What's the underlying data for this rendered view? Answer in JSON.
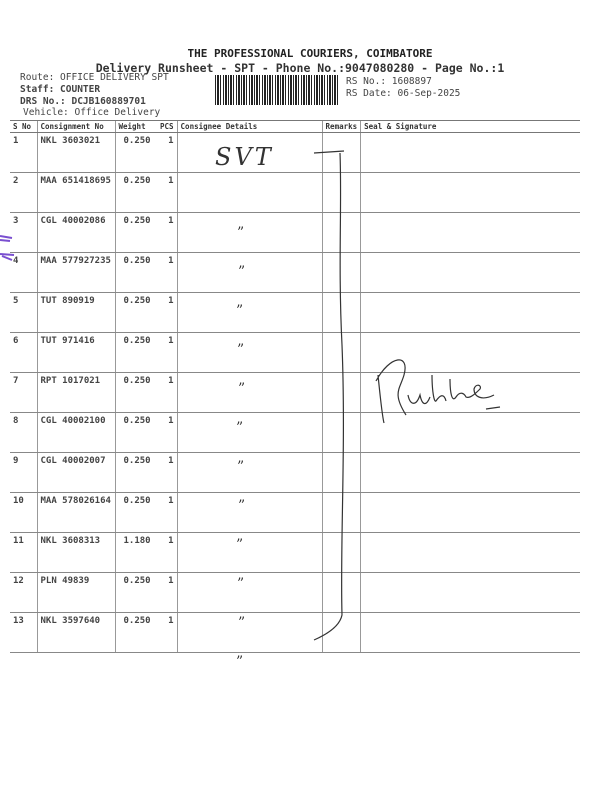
{
  "header": {
    "company": "THE PROFESSIONAL COURIERS, COIMBATORE",
    "subtitle": "Delivery Runsheet - SPT - Phone No.:9047080280 - Page No.:1",
    "route": "Route: OFFICE DELIVERY SPT",
    "staff": "Staff: COUNTER",
    "drs_no": "DRS No.: DCJB160889701",
    "vehicle": "Vehicle: Office Delivery",
    "rs_no": "RS No.: 1608897",
    "rs_date": "RS Date: 06-Sep-2025"
  },
  "table": {
    "columns": [
      "S No",
      "Consignment No",
      "Weight",
      "PCS",
      "Consignee Details",
      "Remarks",
      "Seal & Signature"
    ],
    "rows": [
      {
        "sno": "1",
        "consignment": "NKL 3603021",
        "weight": "0.250",
        "pcs": "1"
      },
      {
        "sno": "2",
        "consignment": "MAA 651418695",
        "weight": "0.250",
        "pcs": "1"
      },
      {
        "sno": "3",
        "consignment": "CGL 40002086",
        "weight": "0.250",
        "pcs": "1"
      },
      {
        "sno": "4",
        "consignment": "MAA 577927235",
        "weight": "0.250",
        "pcs": "1"
      },
      {
        "sno": "5",
        "consignment": "TUT 890919",
        "weight": "0.250",
        "pcs": "1"
      },
      {
        "sno": "6",
        "consignment": "TUT 971416",
        "weight": "0.250",
        "pcs": "1"
      },
      {
        "sno": "7",
        "consignment": "RPT 1017021",
        "weight": "0.250",
        "pcs": "1"
      },
      {
        "sno": "8",
        "consignment": "CGL 40002100",
        "weight": "0.250",
        "pcs": "1"
      },
      {
        "sno": "9",
        "consignment": "CGL 40002007",
        "weight": "0.250",
        "pcs": "1"
      },
      {
        "sno": "10",
        "consignment": "MAA 578026164",
        "weight": "0.250",
        "pcs": "1"
      },
      {
        "sno": "11",
        "consignment": "NKL 3608313",
        "weight": "1.180",
        "pcs": "1"
      },
      {
        "sno": "12",
        "consignment": "PLN 49839",
        "weight": "0.250",
        "pcs": "1"
      },
      {
        "sno": "13",
        "consignment": "NKL 3597640",
        "weight": "0.250",
        "pcs": "1"
      }
    ]
  },
  "handwriting": {
    "consignee_note": "SVT",
    "ditto_mark": "”",
    "signature": "Rukhe"
  },
  "colors": {
    "ink": "#333333",
    "stamp": "#7a4fd0"
  }
}
